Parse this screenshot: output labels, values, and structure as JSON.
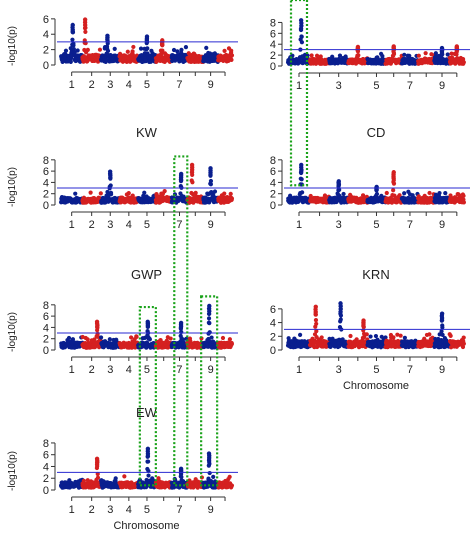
{
  "figure": {
    "y_axis_label": "-log10(p)",
    "x_axis_label": "Chromosome",
    "threshold": 3,
    "colors": {
      "odd_chromosome": "#0a1f8f",
      "even_chromosome": "#d42020",
      "threshold_line": "#2a2ad0",
      "highlight_box": "#1aa21a"
    },
    "highlight_groups": [
      {
        "panels": [
          "top-right",
          "CD"
        ],
        "chromosome": 1
      },
      {
        "panels": [
          "KW",
          "GWP",
          "EW"
        ],
        "chromosome": 7
      },
      {
        "panels": [
          "GWP",
          "EW"
        ],
        "chromosome": 5
      },
      {
        "panels": [
          "GWP",
          "EW"
        ],
        "chromosome": 9
      }
    ]
  },
  "chart_data": [
    {
      "type": "scatter",
      "title": "",
      "xlabel": "",
      "ylabel": "-log10(p)",
      "ylim": [
        0,
        6.5
      ],
      "yticks": [
        0,
        2,
        4,
        6
      ],
      "xticks": [
        "1",
        "2",
        "3",
        "4",
        "5",
        "7",
        "9"
      ],
      "threshold": 3,
      "peaks": [
        {
          "chromosome": 1,
          "position": 0.55,
          "value": 5.2
        },
        {
          "chromosome": 2,
          "position": 0.15,
          "value": 5.9
        },
        {
          "chromosome": 3,
          "position": 0.35,
          "value": 3.8
        },
        {
          "chromosome": 5,
          "position": 0.5,
          "value": 3.7
        },
        {
          "chromosome": 6,
          "position": 0.4,
          "value": 3.2
        }
      ]
    },
    {
      "type": "scatter",
      "title": "",
      "xlabel": "",
      "ylabel": "",
      "ylim": [
        0,
        9
      ],
      "yticks": [
        0,
        2,
        4,
        6,
        8
      ],
      "xticks": [
        "1",
        "3",
        "5",
        "7",
        "9"
      ],
      "threshold": 3,
      "peaks": [
        {
          "chromosome": 1,
          "position": 0.6,
          "value": 8.4
        },
        {
          "chromosome": 4,
          "position": 0.5,
          "value": 3.5
        },
        {
          "chromosome": 6,
          "position": 0.5,
          "value": 3.6
        },
        {
          "chromosome": 9,
          "position": 0.5,
          "value": 3.3
        },
        {
          "chromosome": 10,
          "position": 0.5,
          "value": 3.6
        }
      ]
    },
    {
      "type": "scatter",
      "title": "KW",
      "xlabel": "",
      "ylabel": "-log10(p)",
      "ylim": [
        0,
        8.5
      ],
      "yticks": [
        0,
        2,
        4,
        6,
        8
      ],
      "xticks": [
        "1",
        "2",
        "3",
        "4",
        "5",
        "7",
        "9"
      ],
      "threshold": 3,
      "peaks": [
        {
          "chromosome": 3,
          "position": 0.5,
          "value": 5.9
        },
        {
          "chromosome": 7,
          "position": 0.6,
          "value": 5.5
        },
        {
          "chromosome": 8,
          "position": 0.3,
          "value": 7.1
        },
        {
          "chromosome": 9,
          "position": 0.5,
          "value": 6.5
        }
      ]
    },
    {
      "type": "scatter",
      "title": "CD",
      "xlabel": "",
      "ylabel": "",
      "ylim": [
        0,
        8.5
      ],
      "yticks": [
        0,
        2,
        4,
        6,
        8
      ],
      "xticks": [
        "1",
        "3",
        "5",
        "7",
        "9"
      ],
      "threshold": 3,
      "peaks": [
        {
          "chromosome": 1,
          "position": 0.6,
          "value": 7.1
        },
        {
          "chromosome": 3,
          "position": 0.5,
          "value": 4.2
        },
        {
          "chromosome": 6,
          "position": 0.5,
          "value": 5.8
        },
        {
          "chromosome": 5,
          "position": 0.5,
          "value": 3.2
        }
      ]
    },
    {
      "type": "scatter",
      "title": "GWP",
      "xlabel": "",
      "ylabel": "-log10(p)",
      "ylim": [
        0,
        8.5
      ],
      "yticks": [
        0,
        2,
        4,
        6,
        8
      ],
      "xticks": [
        "1",
        "2",
        "3",
        "4",
        "5",
        "7",
        "9"
      ],
      "threshold": 3,
      "peaks": [
        {
          "chromosome": 2,
          "position": 0.8,
          "value": 5.0
        },
        {
          "chromosome": 5,
          "position": 0.55,
          "value": 5.0
        },
        {
          "chromosome": 7,
          "position": 0.6,
          "value": 4.8
        },
        {
          "chromosome": 9,
          "position": 0.4,
          "value": 7.8
        }
      ]
    },
    {
      "type": "scatter",
      "title": "KRN",
      "xlabel": "Chromosome",
      "ylabel": "",
      "ylim": [
        0,
        7
      ],
      "yticks": [
        0,
        2,
        4,
        6
      ],
      "xticks": [
        "1",
        "3",
        "5",
        "7",
        "9"
      ],
      "threshold": 3,
      "peaks": [
        {
          "chromosome": 2,
          "position": 0.3,
          "value": 6.3
        },
        {
          "chromosome": 3,
          "position": 0.6,
          "value": 6.8
        },
        {
          "chromosome": 4,
          "position": 0.8,
          "value": 4.3
        },
        {
          "chromosome": 9,
          "position": 0.5,
          "value": 5.3
        }
      ]
    },
    {
      "type": "scatter",
      "title": "EW",
      "xlabel": "Chromosome",
      "ylabel": "-log10(p)",
      "ylim": [
        0,
        8.5
      ],
      "yticks": [
        0,
        2,
        4,
        6,
        8
      ],
      "xticks": [
        "1",
        "2",
        "3",
        "4",
        "5",
        "7",
        "9"
      ],
      "threshold": 3,
      "peaks": [
        {
          "chromosome": 2,
          "position": 0.8,
          "value": 5.3
        },
        {
          "chromosome": 5,
          "position": 0.55,
          "value": 7.0
        },
        {
          "chromosome": 7,
          "position": 0.6,
          "value": 3.6
        },
        {
          "chromosome": 9,
          "position": 0.4,
          "value": 6.2
        }
      ]
    }
  ]
}
